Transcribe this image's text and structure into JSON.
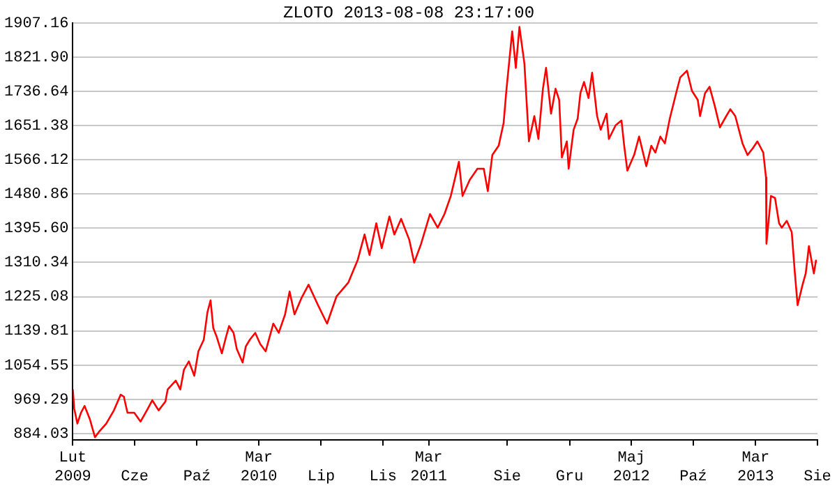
{
  "chart_data": {
    "type": "line",
    "title": "ZLOTO 2013-08-08 23:17:00",
    "x": [
      "2009-02-01",
      "2009-02-04",
      "2009-02-11",
      "2009-02-19",
      "2009-02-27",
      "2009-03-11",
      "2009-03-22",
      "2009-04-01",
      "2009-04-16",
      "2009-05-03",
      "2009-05-18",
      "2009-05-25",
      "2009-06-02",
      "2009-06-17",
      "2009-07-01",
      "2009-07-15",
      "2009-07-27",
      "2009-08-10",
      "2009-08-25",
      "2009-08-30",
      "2009-09-17",
      "2009-09-27",
      "2009-10-05",
      "2009-10-16",
      "2009-10-28",
      "2009-11-06",
      "2009-11-18",
      "2009-11-26",
      "2009-12-03",
      "2009-12-09",
      "2009-12-17",
      "2009-12-28",
      "2010-01-06",
      "2010-01-13",
      "2010-01-23",
      "2010-01-30",
      "2010-02-12",
      "2010-02-19",
      "2010-02-28",
      "2010-03-12",
      "2010-03-23",
      "2010-04-04",
      "2010-04-21",
      "2010-05-03",
      "2010-05-17",
      "2010-05-27",
      "2010-06-07",
      "2010-06-22",
      "2010-07-08",
      "2010-07-29",
      "2010-08-18",
      "2010-09-08",
      "2010-10-04",
      "2010-10-25",
      "2010-11-09",
      "2010-11-20",
      "2010-12-05",
      "2010-12-17",
      "2011-01-03",
      "2011-01-14",
      "2011-01-29",
      "2011-02-16",
      "2011-02-27",
      "2011-03-14",
      "2011-04-03",
      "2011-04-20",
      "2011-05-05",
      "2011-05-19",
      "2011-06-06",
      "2011-06-14",
      "2011-06-30",
      "2011-07-17",
      "2011-07-31",
      "2011-08-09",
      "2011-08-19",
      "2011-09-02",
      "2011-09-13",
      "2011-09-19",
      "2011-10-02",
      "2011-10-10",
      "2011-10-18",
      "2011-10-29",
      "2011-11-08",
      "2011-11-20",
      "2011-11-29",
      "2011-12-09",
      "2011-12-16",
      "2011-12-27",
      "2012-01-06",
      "2012-01-14",
      "2012-01-20",
      "2012-01-31",
      "2012-02-04",
      "2012-02-15",
      "2012-02-24",
      "2012-03-01",
      "2012-03-09",
      "2012-03-19",
      "2012-03-27",
      "2012-04-07",
      "2012-04-15",
      "2012-04-28",
      "2012-05-03",
      "2012-05-18",
      "2012-05-31",
      "2012-06-06",
      "2012-06-13",
      "2012-06-28",
      "2012-07-09",
      "2012-07-25",
      "2012-08-05",
      "2012-08-14",
      "2012-08-25",
      "2012-09-04",
      "2012-09-15",
      "2012-09-29",
      "2012-10-08",
      "2012-10-23",
      "2012-11-03",
      "2012-11-16",
      "2012-11-21",
      "2012-12-02",
      "2012-12-12",
      "2012-12-23",
      "2013-01-04",
      "2013-01-18",
      "2013-01-27",
      "2013-02-07",
      "2013-02-23",
      "2013-03-06",
      "2013-03-18",
      "2013-03-28",
      "2013-04-10",
      "2013-04-16",
      "2013-04-17",
      "2013-04-27",
      "2013-05-06",
      "2013-05-15",
      "2013-05-21",
      "2013-06-01",
      "2013-06-12",
      "2013-06-19",
      "2013-06-25",
      "2013-07-06",
      "2013-07-13",
      "2013-07-20",
      "2013-07-31",
      "2013-08-05"
    ],
    "series": [
      {
        "color": "#ff0000",
        "values": [
          994,
          947,
          909,
          936,
          953,
          919,
          875,
          890,
          909,
          942,
          981,
          976,
          936,
          936,
          914,
          942,
          967,
          942,
          964,
          994,
          1016,
          994,
          1043,
          1064,
          1028,
          1089,
          1118,
          1186,
          1216,
          1147,
          1124,
          1084,
          1124,
          1152,
          1135,
          1095,
          1061,
          1101,
          1118,
          1135,
          1107,
          1089,
          1158,
          1135,
          1181,
          1238,
          1181,
          1221,
          1255,
          1204,
          1158,
          1226,
          1260,
          1317,
          1380,
          1329,
          1408,
          1346,
          1425,
          1380,
          1419,
          1367,
          1310,
          1356,
          1431,
          1397,
          1431,
          1476,
          1561,
          1476,
          1516,
          1544,
          1544,
          1488,
          1578,
          1601,
          1658,
          1738,
          1886,
          1795,
          1897,
          1806,
          1612,
          1675,
          1618,
          1743,
          1795,
          1681,
          1743,
          1715,
          1572,
          1612,
          1544,
          1641,
          1669,
          1732,
          1760,
          1720,
          1783,
          1675,
          1641,
          1681,
          1618,
          1652,
          1664,
          1601,
          1539,
          1578,
          1624,
          1550,
          1601,
          1584,
          1624,
          1607,
          1669,
          1732,
          1771,
          1788,
          1738,
          1715,
          1675,
          1732,
          1748,
          1703,
          1647,
          1675,
          1692,
          1675,
          1607,
          1578,
          1595,
          1612,
          1584,
          1522,
          1357,
          1476,
          1471,
          1408,
          1397,
          1414,
          1386,
          1283,
          1204,
          1255,
          1283,
          1351,
          1283,
          1317
        ]
      }
    ],
    "xlim": [
      "2009-02-01",
      "2013-08-08"
    ],
    "xticks": [
      {
        "value": "2009-02-01",
        "label": "Lut 2009"
      },
      {
        "value": "2009-06-18",
        "label": "Cze"
      },
      {
        "value": "2009-11-03",
        "label": "Paź"
      },
      {
        "value": "2010-03-20",
        "label": "Mar 2010"
      },
      {
        "value": "2010-08-05",
        "label": "Lip"
      },
      {
        "value": "2010-12-20",
        "label": "Lis"
      },
      {
        "value": "2011-03-31",
        "label": "Mar 2011"
      },
      {
        "value": "2011-09-21",
        "label": "Sie"
      },
      {
        "value": "2012-02-06",
        "label": "Gru"
      },
      {
        "value": "2012-06-22",
        "label": "Maj 2012"
      },
      {
        "value": "2012-11-06",
        "label": "Paź"
      },
      {
        "value": "2013-03-24",
        "label": "Mar 2013"
      },
      {
        "value": "2013-08-08",
        "label": "Sie"
      }
    ],
    "ylim": [
      868,
      1907.16
    ],
    "yticks": [
      884.03,
      969.29,
      1054.55,
      1139.81,
      1225.08,
      1310.34,
      {
        "value": 1395.6,
        "label": "1395.60"
      },
      1480.86,
      1566.12,
      1651.38,
      1736.64,
      {
        "value": 1821.9,
        "label": "1821.90"
      },
      1907.16
    ],
    "grid": "y",
    "marker": "none",
    "line_style": "solid"
  }
}
